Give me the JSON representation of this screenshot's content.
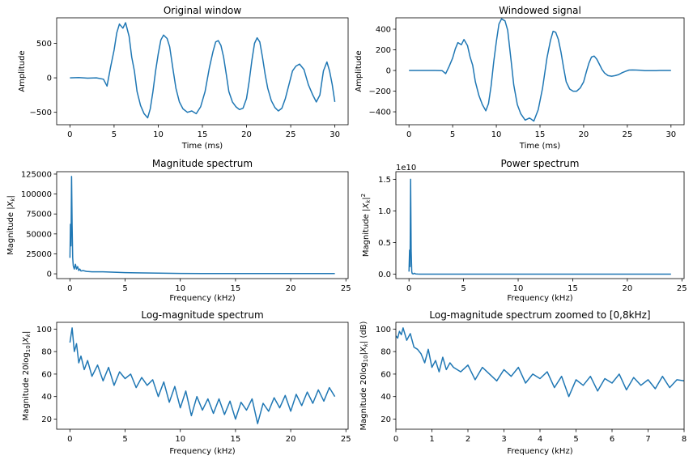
{
  "chart_data": [
    {
      "id": "original",
      "type": "line",
      "title": "Original window",
      "xlabel": "Time (ms)",
      "ylabel": "Amplitude",
      "xlim": [
        -1.5,
        31.5
      ],
      "ylim": [
        -680,
        870
      ],
      "xticks": [
        0,
        5,
        10,
        15,
        20,
        25,
        30
      ],
      "xtick_labels": [
        "0",
        "5",
        "10",
        "15",
        "20",
        "25",
        "30"
      ],
      "yticks": [
        -500,
        0,
        500
      ],
      "ytick_labels": [
        "−500",
        "0",
        "500"
      ],
      "grid": false,
      "color": "#1f77b4",
      "series": [
        {
          "x": [
            0,
            1,
            2,
            3,
            3.8,
            4.2,
            4.6,
            5.0,
            5.3,
            5.6,
            6.0,
            6.3,
            6.7,
            7.0,
            7.3,
            7.6,
            8.0,
            8.4,
            8.8,
            9.1,
            9.4,
            9.7,
            10.0,
            10.3,
            10.6,
            11.0,
            11.3,
            11.7,
            12.0,
            12.4,
            12.8,
            13.3,
            13.8,
            14.3,
            14.8,
            15.3,
            15.8,
            16.2,
            16.5,
            16.8,
            17.1,
            17.4,
            17.7,
            18.0,
            18.4,
            18.8,
            19.2,
            19.6,
            20.0,
            20.3,
            20.6,
            20.9,
            21.2,
            21.5,
            21.8,
            22.1,
            22.4,
            22.8,
            23.2,
            23.6,
            24.0,
            24.4,
            24.8,
            25.2,
            25.6,
            26.0,
            26.5,
            27.0,
            27.5,
            27.9,
            28.3,
            28.7,
            29.1,
            29.4,
            29.7,
            30.0
          ],
          "y": [
            0,
            5,
            -5,
            0,
            -20,
            -120,
            150,
            400,
            650,
            780,
            720,
            800,
            600,
            300,
            100,
            -200,
            -400,
            -520,
            -580,
            -450,
            -200,
            100,
            350,
            550,
            620,
            570,
            450,
            100,
            -150,
            -350,
            -450,
            -500,
            -480,
            -520,
            -420,
            -200,
            150,
            380,
            520,
            540,
            470,
            300,
            50,
            -200,
            -350,
            -420,
            -460,
            -440,
            -300,
            -50,
            250,
            500,
            580,
            520,
            300,
            50,
            -150,
            -330,
            -430,
            -480,
            -440,
            -300,
            -100,
            100,
            170,
            200,
            120,
            -100,
            -250,
            -350,
            -250,
            100,
            230,
            100,
            -100,
            -350
          ]
        }
      ]
    },
    {
      "id": "windowed",
      "type": "line",
      "title": "Windowed signal",
      "xlabel": "Time (ms)",
      "ylabel": "Amplitude",
      "xlim": [
        -1.5,
        31.5
      ],
      "ylim": [
        -525,
        510
      ],
      "xticks": [
        0,
        5,
        10,
        15,
        20,
        25,
        30
      ],
      "xtick_labels": [
        "0",
        "5",
        "10",
        "15",
        "20",
        "25",
        "30"
      ],
      "yticks": [
        -400,
        -200,
        0,
        200,
        400
      ],
      "ytick_labels": [
        "−400",
        "−200",
        "0",
        "200",
        "400"
      ],
      "grid": false,
      "color": "#1f77b4",
      "series": [
        {
          "x": [
            0,
            1,
            2,
            3,
            3.8,
            4.2,
            4.6,
            5.0,
            5.3,
            5.6,
            6.0,
            6.3,
            6.7,
            7.0,
            7.3,
            7.6,
            8.0,
            8.4,
            8.8,
            9.1,
            9.4,
            9.7,
            10.0,
            10.3,
            10.6,
            11.0,
            11.3,
            11.7,
            12.0,
            12.4,
            12.8,
            13.3,
            13.8,
            14.3,
            14.8,
            15.3,
            15.8,
            16.2,
            16.5,
            16.8,
            17.1,
            17.4,
            17.7,
            18.0,
            18.4,
            18.8,
            19.2,
            19.6,
            20.0,
            20.3,
            20.6,
            20.9,
            21.2,
            21.5,
            21.8,
            22.1,
            22.4,
            22.8,
            23.2,
            23.6,
            24.0,
            24.4,
            24.8,
            25.2,
            25.6,
            26.0,
            26.5,
            27.0,
            27.5,
            27.9,
            28.3,
            28.7,
            29.1,
            29.4,
            29.7,
            30.0
          ],
          "y": [
            0,
            0,
            0,
            0,
            -2,
            -30,
            40,
            120,
            210,
            270,
            250,
            300,
            240,
            130,
            50,
            -110,
            -240,
            -330,
            -390,
            -320,
            -150,
            80,
            280,
            450,
            500,
            480,
            390,
            90,
            -140,
            -330,
            -420,
            -480,
            -460,
            -490,
            -380,
            -170,
            120,
            290,
            380,
            370,
            300,
            180,
            30,
            -110,
            -180,
            -200,
            -200,
            -170,
            -110,
            -15,
            70,
            130,
            140,
            110,
            60,
            10,
            -25,
            -50,
            -55,
            -50,
            -40,
            -22,
            -8,
            4,
            5,
            4,
            2,
            -1,
            -2,
            -2,
            -1,
            0,
            0,
            0,
            0,
            0
          ]
        }
      ]
    },
    {
      "id": "magnitude",
      "type": "line",
      "title": "Magnitude spectrum",
      "xlabel": "Frequency (kHz)",
      "ylabel": "Magnitude |X_k|",
      "xlim": [
        -1.2,
        25.2
      ],
      "ylim": [
        -6000,
        128000
      ],
      "xticks": [
        0,
        5,
        10,
        15,
        20,
        25
      ],
      "xtick_labels": [
        "0",
        "5",
        "10",
        "15",
        "20",
        "25"
      ],
      "yticks": [
        0,
        25000,
        50000,
        75000,
        100000,
        125000
      ],
      "ytick_labels": [
        "0",
        "25000",
        "50000",
        "75000",
        "100000",
        "125000"
      ],
      "grid": false,
      "color": "#1f77b4",
      "series": [
        {
          "x": [
            0,
            0.05,
            0.1,
            0.15,
            0.2,
            0.25,
            0.3,
            0.35,
            0.4,
            0.5,
            0.6,
            0.7,
            0.8,
            0.9,
            1.0,
            1.2,
            1.5,
            2,
            3,
            4,
            5,
            6,
            8,
            10,
            12,
            15,
            18,
            20,
            22,
            24
          ],
          "y": [
            20000,
            62000,
            35000,
            122000,
            60000,
            20000,
            10000,
            8000,
            6000,
            12000,
            6000,
            9000,
            4000,
            6000,
            3500,
            4000,
            3000,
            2500,
            2500,
            2000,
            1500,
            1200,
            800,
            500,
            400,
            300,
            250,
            250,
            250,
            300
          ]
        }
      ]
    },
    {
      "id": "power",
      "type": "line",
      "title": "Power spectrum",
      "xlabel": "Frequency (kHz)",
      "ylabel": "Magnitude |X_k|²",
      "offset_text": "1e10",
      "xlim": [
        -1.2,
        25.2
      ],
      "ylim": [
        -0.07,
        1.62
      ],
      "xticks": [
        0,
        5,
        10,
        15,
        20,
        25
      ],
      "xtick_labels": [
        "0",
        "5",
        "10",
        "15",
        "20",
        "25"
      ],
      "yticks": [
        0.0,
        0.5,
        1.0,
        1.5
      ],
      "ytick_labels": [
        "0.0",
        "0.5",
        "1.0",
        "1.5"
      ],
      "grid": false,
      "color": "#1f77b4",
      "series": [
        {
          "x": [
            0,
            0.05,
            0.1,
            0.15,
            0.2,
            0.25,
            0.3,
            0.35,
            0.4,
            0.5,
            0.6,
            0.8,
            1.0,
            2,
            5,
            10,
            15,
            20,
            24
          ],
          "y": [
            0.04,
            0.38,
            0.12,
            1.5,
            0.36,
            0.04,
            0.01,
            0.006,
            0.004,
            0.014,
            0.004,
            0.002,
            0.001,
            0.001,
            0,
            0,
            0,
            0,
            0
          ]
        }
      ]
    },
    {
      "id": "logmag",
      "type": "line",
      "title": "Log-magnitude spectrum",
      "xlabel": "Frequency (kHz)",
      "ylabel": "Magnitude 20log₁₀|X_k|",
      "xlim": [
        -1.2,
        25.2
      ],
      "ylim": [
        11,
        106
      ],
      "xticks": [
        0,
        5,
        10,
        15,
        20,
        25
      ],
      "xtick_labels": [
        "0",
        "5",
        "10",
        "15",
        "20",
        "25"
      ],
      "yticks": [
        20,
        40,
        60,
        80,
        100
      ],
      "ytick_labels": [
        "20",
        "40",
        "60",
        "80",
        "100"
      ],
      "grid": false,
      "color": "#1f77b4",
      "series": [
        {
          "x": [
            0,
            0.2,
            0.4,
            0.6,
            0.8,
            1.0,
            1.3,
            1.6,
            2.0,
            2.5,
            3.0,
            3.5,
            4.0,
            4.5,
            5.0,
            5.5,
            6.0,
            6.5,
            7.0,
            7.5,
            8.0,
            8.5,
            9.0,
            9.5,
            10.0,
            10.5,
            11.0,
            11.5,
            12.0,
            12.5,
            13.0,
            13.5,
            14.0,
            14.5,
            15.0,
            15.5,
            16.0,
            16.5,
            17.0,
            17.5,
            18.0,
            18.5,
            19.0,
            19.5,
            20.0,
            20.5,
            21.0,
            21.5,
            22.0,
            22.5,
            23.0,
            23.5,
            24.0
          ],
          "y": [
            88,
            101,
            80,
            87,
            70,
            76,
            64,
            72,
            58,
            68,
            54,
            66,
            50,
            62,
            56,
            60,
            48,
            57,
            50,
            55,
            40,
            53,
            35,
            49,
            30,
            45,
            23,
            40,
            28,
            38,
            25,
            38,
            24,
            36,
            20,
            35,
            28,
            38,
            16,
            34,
            27,
            39,
            30,
            41,
            27,
            42,
            32,
            44,
            34,
            46,
            36,
            48,
            40
          ]
        }
      ]
    },
    {
      "id": "logmag_zoom",
      "type": "line",
      "title": "Log-magnitude spectrum zoomed to [0,8kHz]",
      "xlabel": "Frequency (kHz)",
      "ylabel": "Magnitude 20log₁₀|X_k| (dB)",
      "xlim": [
        0,
        8
      ],
      "ylim": [
        11,
        106
      ],
      "xticks": [
        0,
        1,
        2,
        3,
        4,
        5,
        6,
        7,
        8
      ],
      "xtick_labels": [
        "0",
        "1",
        "2",
        "3",
        "4",
        "5",
        "6",
        "7",
        "8"
      ],
      "yticks": [
        20,
        40,
        60,
        80,
        100
      ],
      "ytick_labels": [
        "20",
        "40",
        "60",
        "80",
        "100"
      ],
      "grid": false,
      "color": "#1f77b4",
      "series": [
        {
          "x": [
            0,
            0.05,
            0.1,
            0.15,
            0.2,
            0.3,
            0.4,
            0.5,
            0.6,
            0.7,
            0.8,
            0.9,
            1.0,
            1.1,
            1.2,
            1.3,
            1.4,
            1.5,
            1.6,
            1.8,
            2.0,
            2.2,
            2.4,
            2.6,
            2.8,
            3.0,
            3.2,
            3.4,
            3.6,
            3.8,
            4.0,
            4.2,
            4.4,
            4.6,
            4.8,
            5.0,
            5.2,
            5.4,
            5.6,
            5.8,
            6.0,
            6.2,
            6.4,
            6.6,
            6.8,
            7.0,
            7.2,
            7.4,
            7.6,
            7.8,
            8.0
          ],
          "y": [
            94,
            92,
            98,
            95,
            101,
            90,
            96,
            84,
            82,
            78,
            70,
            82,
            66,
            72,
            62,
            75,
            64,
            70,
            66,
            62,
            68,
            55,
            66,
            60,
            54,
            64,
            58,
            66,
            52,
            60,
            56,
            62,
            48,
            58,
            40,
            55,
            50,
            58,
            45,
            56,
            52,
            60,
            46,
            57,
            50,
            55,
            47,
            58,
            48,
            55,
            54
          ]
        }
      ]
    }
  ]
}
